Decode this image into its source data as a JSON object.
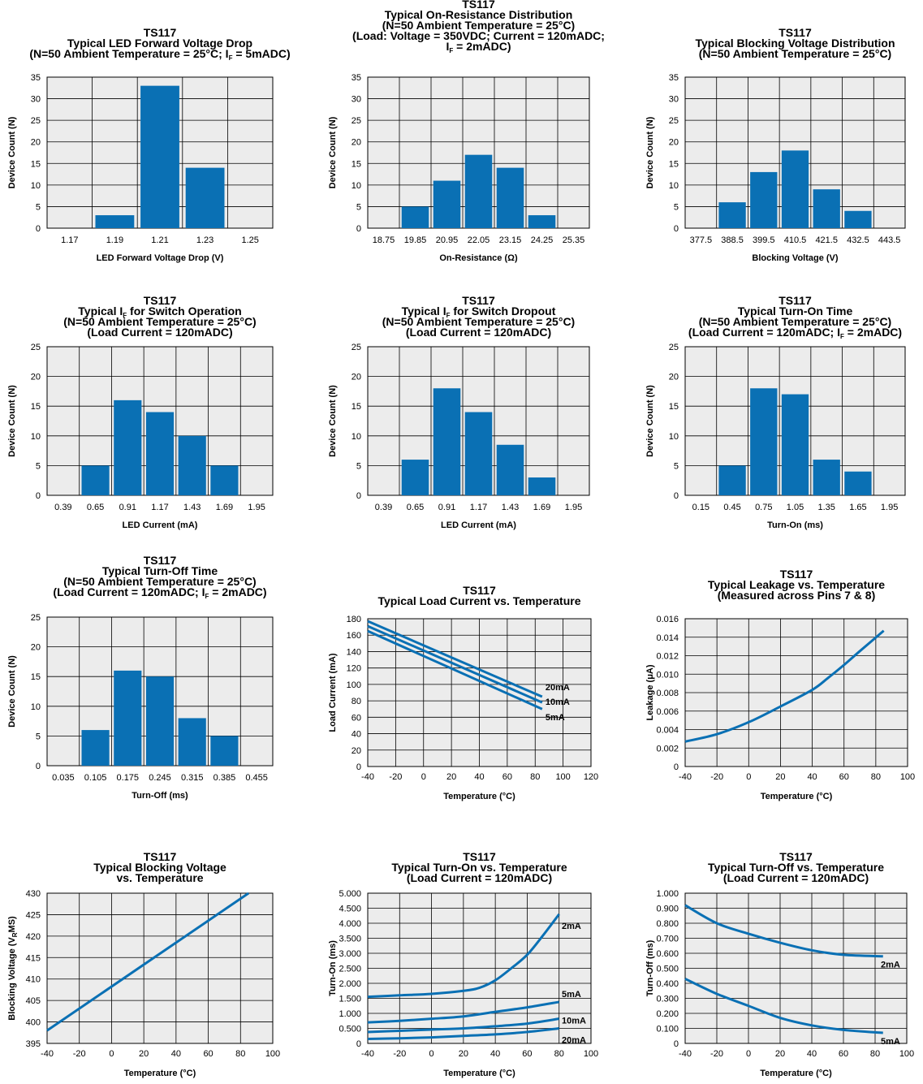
{
  "colors": {
    "accent": "#0a70b4",
    "plot_bg": "#ececec",
    "grid": "#000000"
  },
  "chart_data": [
    {
      "type": "bar",
      "title": [
        "TS117",
        "Typical LED Forward Voltage Drop",
        "(N=50 Ambient Temperature = 25°C; I_F = 5mADC)"
      ],
      "xlabel": "LED Forward Voltage Drop (V)",
      "ylabel": "Device Count (N)",
      "categories": [
        "1.17",
        "1.19",
        "1.21",
        "1.23",
        "1.25"
      ],
      "values": [
        0,
        3,
        33,
        14,
        0
      ],
      "ylim": [
        0,
        35
      ],
      "yticks": [
        0,
        5,
        10,
        15,
        20,
        25,
        30,
        35
      ],
      "grid": true
    },
    {
      "type": "bar",
      "title": [
        "TS117",
        "Typical On-Resistance Distribution",
        "(N=50 Ambient Temperature = 25°C)",
        "(Load: Voltage = 350VDC; Current = 120mADC;",
        "I_F = 2mADC)"
      ],
      "xlabel": "On-Resistance (Ω)",
      "ylabel": "Device Count (N)",
      "categories": [
        "18.75",
        "19.85",
        "20.95",
        "22.05",
        "23.15",
        "24.25",
        "25.35"
      ],
      "values": [
        0,
        5,
        11,
        17,
        14,
        3,
        0
      ],
      "ylim": [
        0,
        35
      ],
      "yticks": [
        0,
        5,
        10,
        15,
        20,
        25,
        30,
        35
      ],
      "grid": true
    },
    {
      "type": "bar",
      "title": [
        "TS117",
        "Typical Blocking Voltage Distribution",
        "(N=50 Ambient Temperature = 25°C)"
      ],
      "xlabel": "Blocking Voltage (V)",
      "ylabel": "Device Count (N)",
      "categories": [
        "377.5",
        "388.5",
        "399.5",
        "410.5",
        "421.5",
        "432.5",
        "443.5"
      ],
      "values": [
        0,
        6,
        13,
        18,
        9,
        4,
        0
      ],
      "ylim": [
        0,
        35
      ],
      "yticks": [
        0,
        5,
        10,
        15,
        20,
        25,
        30,
        35
      ],
      "grid": true
    },
    {
      "type": "bar",
      "title": [
        "TS117",
        "Typical I_F for Switch Operation",
        "(N=50 Ambient Temperature = 25°C)",
        "(Load Current = 120mADC)"
      ],
      "xlabel": "LED Current (mA)",
      "ylabel": "Device Count (N)",
      "categories": [
        "0.39",
        "0.65",
        "0.91",
        "1.17",
        "1.43",
        "1.69",
        "1.95"
      ],
      "values": [
        0,
        5,
        16,
        14,
        10,
        5,
        0
      ],
      "ylim": [
        0,
        25
      ],
      "yticks": [
        0,
        5,
        10,
        15,
        20,
        25
      ],
      "grid": true
    },
    {
      "type": "bar",
      "title": [
        "TS117",
        "Typical I_F for Switch Dropout",
        "(N=50 Ambient Temperature = 25°C)",
        "(Load Current = 120mADC)"
      ],
      "xlabel": "LED Current (mA)",
      "ylabel": "Device Count (N)",
      "categories": [
        "0.39",
        "0.65",
        "0.91",
        "1.17",
        "1.43",
        "1.69",
        "1.95"
      ],
      "values": [
        0,
        6,
        18,
        14,
        8.5,
        3,
        0
      ],
      "ylim": [
        0,
        25
      ],
      "yticks": [
        0,
        5,
        10,
        15,
        20,
        25
      ],
      "grid": true
    },
    {
      "type": "bar",
      "title": [
        "TS117",
        "Typical Turn-On Time",
        "(N=50 Ambient Temperature = 25°C)",
        "(Load Current = 120mADC; I_F = 2mADC)"
      ],
      "xlabel": "Turn-On (ms)",
      "ylabel": "Device Count (N)",
      "categories": [
        "0.15",
        "0.45",
        "0.75",
        "1.05",
        "1.35",
        "1.65",
        "1.95"
      ],
      "values": [
        0,
        5,
        18,
        17,
        6,
        4,
        0
      ],
      "ylim": [
        0,
        25
      ],
      "yticks": [
        0,
        5,
        10,
        15,
        20,
        25
      ],
      "grid": true
    },
    {
      "type": "bar",
      "title": [
        "TS117",
        "Typical Turn-Off Time",
        "(N=50 Ambient Temperature = 25°C)",
        "(Load Current = 120mADC; I_F = 2mADC)"
      ],
      "xlabel": "Turn-Off (ms)",
      "ylabel": "Device Count (N)",
      "categories": [
        "0.035",
        "0.105",
        "0.175",
        "0.245",
        "0.315",
        "0.385",
        "0.455"
      ],
      "values": [
        0,
        6,
        16,
        15,
        8,
        5,
        0
      ],
      "ylim": [
        0,
        25
      ],
      "yticks": [
        0,
        5,
        10,
        15,
        20,
        25
      ],
      "grid": true
    },
    {
      "type": "line",
      "title": [
        "TS117",
        "Typical Load Current vs. Temperature"
      ],
      "xlabel": "Temperature (°C)",
      "ylabel": "Load Current (mA)",
      "xlim": [
        -40,
        120
      ],
      "xticks": [
        -40,
        -20,
        0,
        20,
        40,
        60,
        80,
        100,
        120
      ],
      "ylim": [
        0,
        180
      ],
      "yticks": [
        0,
        20,
        40,
        60,
        80,
        100,
        120,
        140,
        160,
        180
      ],
      "ytick_labels": [
        "0",
        "20",
        "40",
        "60",
        "80",
        "100",
        "120",
        "140",
        "160",
        "180"
      ],
      "grid": true,
      "series": [
        {
          "name": "20mA",
          "x": [
            -40,
            85
          ],
          "y": [
            177,
            85
          ]
        },
        {
          "name": "10mA",
          "x": [
            -40,
            85
          ],
          "y": [
            171,
            78
          ]
        },
        {
          "name": "5mA",
          "x": [
            -40,
            85
          ],
          "y": [
            165,
            70
          ]
        }
      ]
    },
    {
      "type": "line",
      "title": [
        "TS117",
        "Typical Leakage vs. Temperature",
        "(Measured across Pins 7 & 8)"
      ],
      "xlabel": "Temperature (°C)",
      "ylabel": "Leakage (μA)",
      "xlim": [
        -40,
        100
      ],
      "xticks": [
        -40,
        -20,
        0,
        20,
        40,
        60,
        80,
        100
      ],
      "ylim": [
        0,
        0.016
      ],
      "yticks": [
        0,
        0.002,
        0.004,
        0.006,
        0.008,
        0.01,
        0.012,
        0.014,
        0.016
      ],
      "ytick_labels": [
        "0",
        "0.002",
        "0.004",
        "0.006",
        "0.008",
        "0.010",
        "0.012",
        "0.014",
        "0.016"
      ],
      "grid": true,
      "series": [
        {
          "x": [
            -40,
            -20,
            0,
            20,
            40,
            50,
            60,
            70,
            85
          ],
          "y": [
            0.0027,
            0.0035,
            0.0048,
            0.0065,
            0.0083,
            0.0096,
            0.011,
            0.0125,
            0.0147
          ]
        }
      ]
    },
    {
      "type": "line",
      "title": [
        "TS117",
        "Typical Blocking Voltage",
        "vs. Temperature"
      ],
      "xlabel": "Temperature (°C)",
      "ylabel": "Blocking Voltage (V_RMS)",
      "xlim": [
        -40,
        100
      ],
      "xticks": [
        -40,
        -20,
        0,
        20,
        40,
        60,
        80,
        100
      ],
      "ylim": [
        395,
        430
      ],
      "yticks": [
        395,
        400,
        405,
        410,
        415,
        420,
        425,
        430
      ],
      "ytick_labels": [
        "395",
        "400",
        "405",
        "410",
        "415",
        "420",
        "425",
        "430"
      ],
      "grid": true,
      "series": [
        {
          "x": [
            -40,
            85
          ],
          "y": [
            398,
            430
          ]
        }
      ]
    },
    {
      "type": "line",
      "title": [
        "TS117",
        "Typical Turn-On vs. Temperature",
        "(Load Current = 120mADC)"
      ],
      "xlabel": "Temperature (°C)",
      "ylabel": "Turn-On (ms)",
      "xlim": [
        -40,
        100
      ],
      "xticks": [
        -40,
        -20,
        0,
        20,
        40,
        60,
        80,
        100
      ],
      "ylim": [
        0,
        5
      ],
      "yticks": [
        0,
        0.5,
        1,
        1.5,
        2,
        2.5,
        3,
        3.5,
        4,
        4.5,
        5
      ],
      "ytick_labels": [
        "0",
        "0.500",
        "1.000",
        "1.500",
        "2.000",
        "2.500",
        "3.000",
        "3.500",
        "4.000",
        "4.500",
        "5.000"
      ],
      "grid": true,
      "series": [
        {
          "name": "2mA",
          "x": [
            -40,
            -20,
            0,
            20,
            30,
            40,
            50,
            60,
            70,
            80
          ],
          "y": [
            1.55,
            1.6,
            1.65,
            1.75,
            1.85,
            2.1,
            2.5,
            2.95,
            3.6,
            4.3
          ]
        },
        {
          "name": "5mA",
          "x": [
            -40,
            -20,
            0,
            20,
            40,
            60,
            80
          ],
          "y": [
            0.7,
            0.75,
            0.82,
            0.9,
            1.05,
            1.2,
            1.38
          ]
        },
        {
          "name": "10mA",
          "x": [
            -40,
            -20,
            0,
            20,
            40,
            60,
            80
          ],
          "y": [
            0.38,
            0.42,
            0.46,
            0.5,
            0.57,
            0.66,
            0.82
          ]
        },
        {
          "name": "20mA",
          "x": [
            -40,
            -20,
            0,
            20,
            40,
            60,
            80
          ],
          "y": [
            0.15,
            0.17,
            0.2,
            0.25,
            0.3,
            0.38,
            0.5
          ]
        }
      ]
    },
    {
      "type": "line",
      "title": [
        "TS117",
        "Typical Turn-Off vs. Temperature",
        "(Load Current = 120mADC)"
      ],
      "xlabel": "Temperature (°C)",
      "ylabel": "Turn-Off (ms)",
      "xlim": [
        -40,
        100
      ],
      "xticks": [
        -40,
        -20,
        0,
        20,
        40,
        60,
        80,
        100
      ],
      "ylim": [
        0,
        1
      ],
      "yticks": [
        0,
        0.1,
        0.2,
        0.3,
        0.4,
        0.5,
        0.6,
        0.7,
        0.8,
        0.9,
        1
      ],
      "ytick_labels": [
        "0",
        "0.100",
        "0.200",
        "0.300",
        "0.400",
        "0.500",
        "0.600",
        "0.700",
        "0.800",
        "0.900",
        "1.000"
      ],
      "grid": true,
      "series": [
        {
          "name": "2mA",
          "x": [
            -40,
            -20,
            0,
            20,
            40,
            60,
            85
          ],
          "y": [
            0.92,
            0.8,
            0.73,
            0.67,
            0.62,
            0.59,
            0.58
          ]
        },
        {
          "name": "5mA",
          "x": [
            -40,
            -20,
            0,
            20,
            40,
            60,
            85
          ],
          "y": [
            0.43,
            0.33,
            0.25,
            0.17,
            0.12,
            0.09,
            0.07
          ]
        }
      ]
    }
  ]
}
